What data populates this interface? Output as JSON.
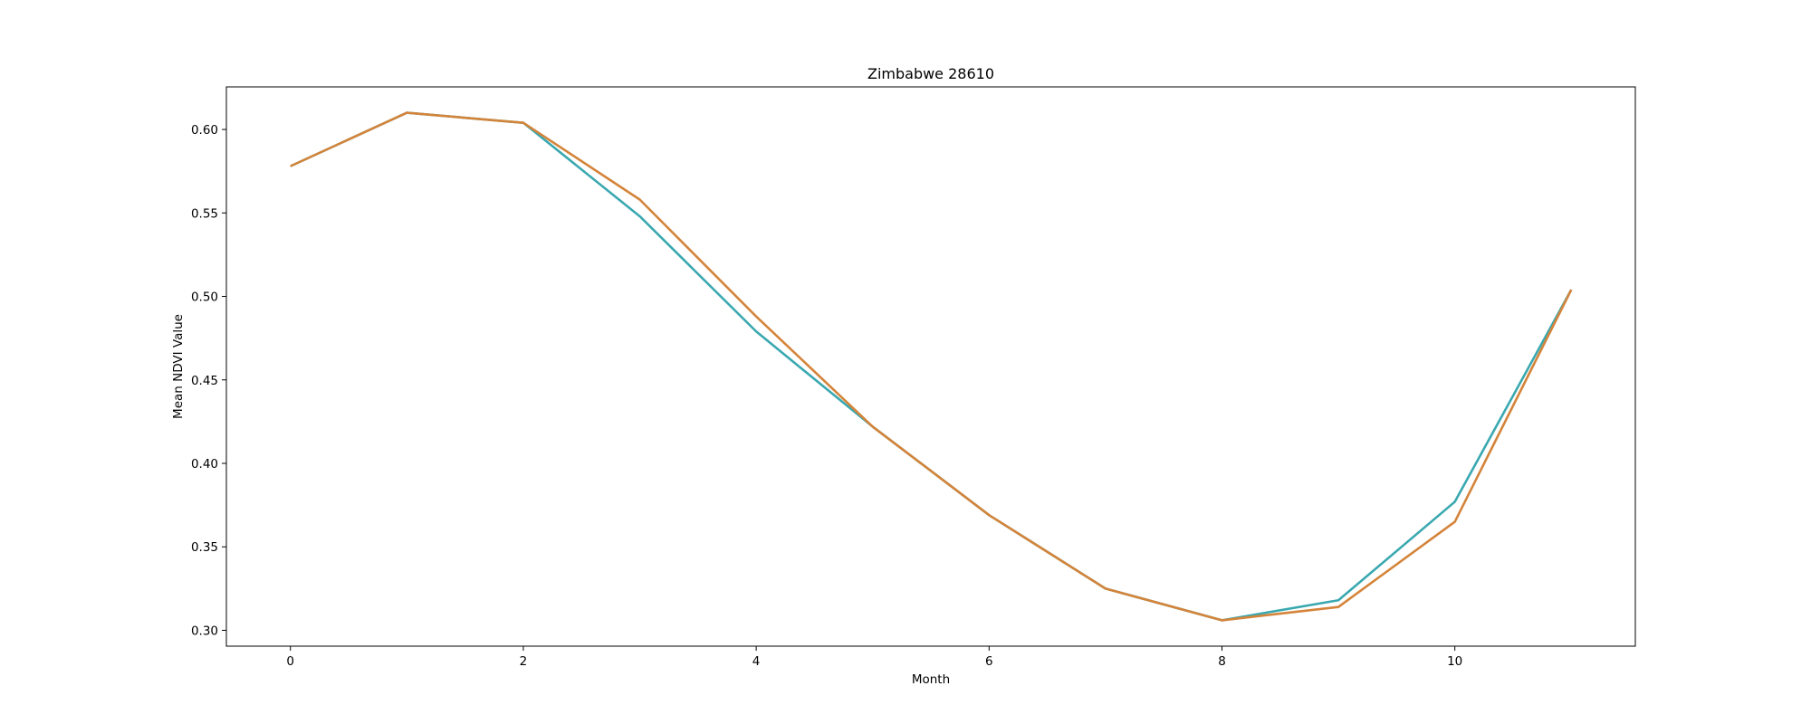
{
  "chart_data": {
    "type": "line",
    "title": "Zimbabwe 28610",
    "xlabel": "Month",
    "ylabel": "Mean NDVI Value",
    "xlim": [
      -0.55,
      11.55
    ],
    "ylim": [
      0.2905,
      0.6255
    ],
    "xticks": [
      0,
      2,
      4,
      6,
      8,
      10
    ],
    "xtick_labels": [
      "0",
      "2",
      "4",
      "6",
      "8",
      "10"
    ],
    "yticks": [
      0.3,
      0.35,
      0.4,
      0.45,
      0.5,
      0.55,
      0.6
    ],
    "ytick_labels": [
      "0.30",
      "0.35",
      "0.40",
      "0.45",
      "0.50",
      "0.55",
      "0.60"
    ],
    "grid": false,
    "legend": "none",
    "x": [
      0,
      1,
      2,
      3,
      4,
      5,
      6,
      7,
      8,
      9,
      10,
      11
    ],
    "series": [
      {
        "color": "#3aa8b0",
        "values": [
          0.578,
          0.61,
          0.604,
          0.548,
          0.479,
          0.422,
          0.369,
          0.325,
          0.306,
          0.318,
          0.377,
          0.504
        ]
      },
      {
        "color": "#d4843a",
        "values": [
          0.578,
          0.61,
          0.604,
          0.558,
          0.488,
          0.422,
          0.369,
          0.325,
          0.306,
          0.314,
          0.365,
          0.504
        ]
      }
    ]
  }
}
